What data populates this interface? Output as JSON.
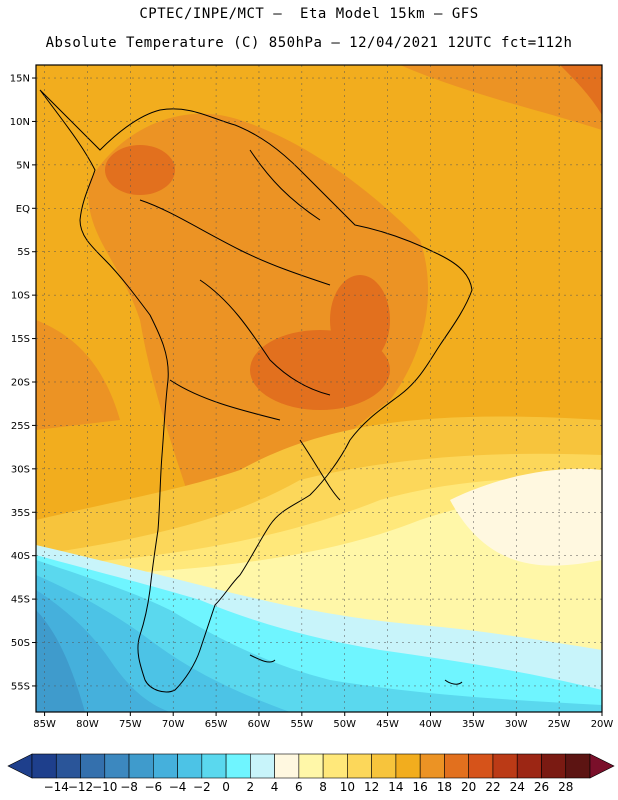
{
  "header": {
    "line1": "CPTEC/INPE/MCT –  Eta Model 15km – GFS",
    "line2": "Absolute Temperature (C) 850hPa – 12/04/2021 12UTC fct=112h"
  },
  "map": {
    "lat_labels": [
      "15N",
      "10N",
      "5N",
      "EQ",
      "5S",
      "10S",
      "15S",
      "20S",
      "25S",
      "30S",
      "35S",
      "40S",
      "45S",
      "50S",
      "55S"
    ],
    "lat_values": [
      15,
      10,
      5,
      0,
      -5,
      -10,
      -15,
      -20,
      -25,
      -30,
      -35,
      -40,
      -45,
      -50,
      -55
    ],
    "lon_labels": [
      "85W",
      "80W",
      "75W",
      "70W",
      "65W",
      "60W",
      "55W",
      "50W",
      "45W",
      "40W",
      "35W",
      "30W",
      "25W",
      "20W"
    ],
    "lon_values": [
      -85,
      -80,
      -75,
      -70,
      -65,
      -60,
      -55,
      -50,
      -45,
      -40,
      -35,
      -30,
      -25,
      -20
    ],
    "extent": {
      "lon_min": -86,
      "lon_max": -20,
      "lat_min": -58,
      "lat_max": 16.5
    }
  },
  "colorbar": {
    "labels": [
      "-14",
      "-12",
      "-10",
      "-8",
      "-6",
      "-4",
      "-2",
      "0",
      "2",
      "4",
      "6",
      "8",
      "10",
      "12",
      "14",
      "16",
      "18",
      "20",
      "22",
      "24",
      "26",
      "28"
    ],
    "colors": [
      "#1e3f8c",
      "#2a5599",
      "#3470ad",
      "#3c88bf",
      "#3f9bcc",
      "#45b0dc",
      "#4cc3e6",
      "#5ad8ee",
      "#6ff5ff",
      "#c8f4fa",
      "#fff8e0",
      "#fff7a8",
      "#ffe87a",
      "#fcd75a",
      "#f7c43c",
      "#f2ad1e",
      "#ec9324",
      "#e2701e",
      "#d6531a",
      "#bb3a16",
      "#9c2614",
      "#7a1a12",
      "#5c1412"
    ],
    "under_color": "#1e3f8c",
    "over_color": "#7a0f2a"
  }
}
